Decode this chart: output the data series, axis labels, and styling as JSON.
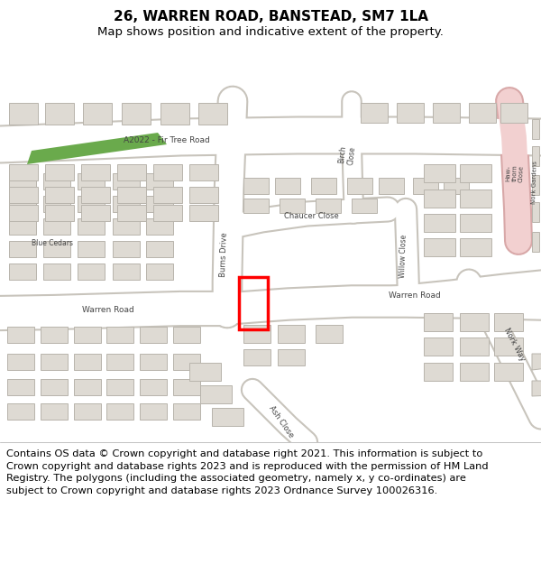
{
  "title_line1": "26, WARREN ROAD, BANSTEAD, SM7 1LA",
  "title_line2": "Map shows position and indicative extent of the property.",
  "copyright_text": "Contains OS data © Crown copyright and database right 2021. This information is subject to Crown copyright and database rights 2023 and is reproduced with the permission of HM Land Registry. The polygons (including the associated geometry, namely x, y co-ordinates) are subject to Crown copyright and database rights 2023 Ordnance Survey 100026316.",
  "fig_width": 6.0,
  "fig_height": 6.25,
  "map_bg": "#f0ede6",
  "building_fill": "#dedad3",
  "building_edge": "#b8b4ac",
  "road_fill": "#ffffff",
  "road_edge": "#c8c4bc",
  "pink_road_fill": "#f2d0d0",
  "pink_road_edge": "#d8a8a8",
  "green_fill": "#6aaa4c",
  "red_rect_color": "#ff0000",
  "label_color": "#444444",
  "title_fs": 11,
  "subtitle_fs": 9.5,
  "copy_fs": 8.2
}
